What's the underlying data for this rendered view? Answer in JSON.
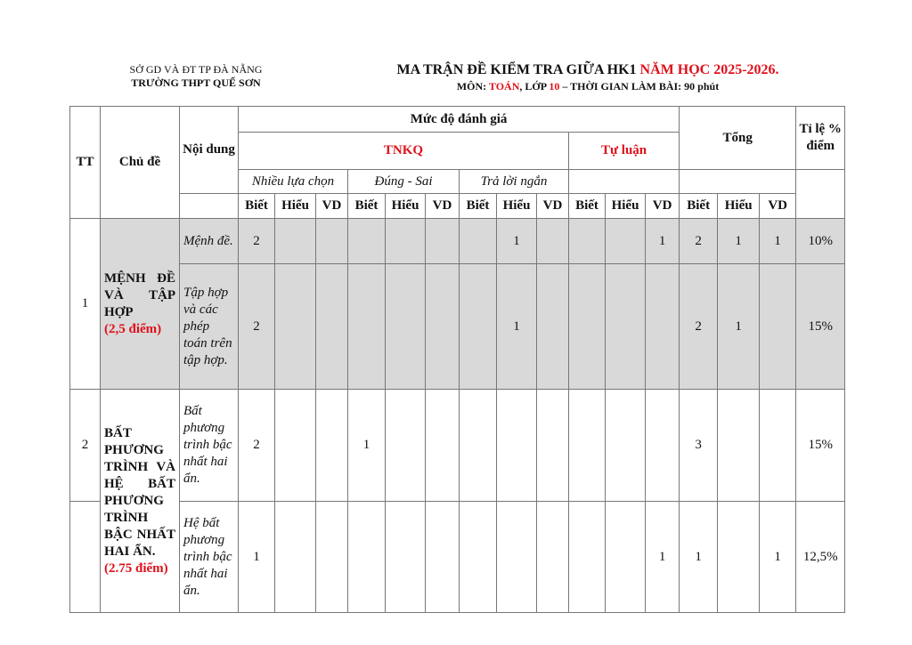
{
  "header": {
    "dept": "SỞ GD VÀ ĐT TP ĐÀ NẴNG",
    "school": "TRƯỜNG THPT QUẾ SƠN",
    "title_a": "MA TRẬN ĐỀ KIỂM TRA GIỮA HK1 ",
    "title_b": "NĂM HỌC 2025-2026.",
    "sub_a": "MÔN: ",
    "sub_b": "TOÁN",
    "sub_c": ", LỚP ",
    "sub_d": "10",
    "sub_e": " – THỜI GIAN LÀM BÀI: 90 phút"
  },
  "table": {
    "h_tt": "TT",
    "h_chude": "Chủ đề",
    "h_noidung": "Nội dung",
    "h_mucdo": "Mức độ đánh giá",
    "h_tnkq": "TNKQ",
    "h_tuluan": "Tự luận",
    "h_tong": "Tổng",
    "h_tile": "Tỉ lệ % điểm",
    "h_nlc": "Nhiều lựa chọn",
    "h_ds": "Đúng - Sai",
    "h_tln": "Trả lời ngắn",
    "levels": [
      "Biết",
      "Hiểu",
      "VD",
      "Biết",
      "Hiểu",
      "VD",
      "Biết",
      "Hiểu",
      "VD",
      "Biết",
      "Hiểu",
      "VD",
      "Biết",
      "Hiểu",
      "VD"
    ],
    "topics": [
      {
        "tt": "1",
        "name": "MỆNH ĐỀ VÀ TẬP HỢP",
        "points": "(2,5 điểm)",
        "shaded": true,
        "rows": [
          {
            "content": "Mệnh đề.",
            "cells": [
              "2",
              "",
              "",
              "",
              "",
              "",
              "",
              "1",
              "",
              "",
              "",
              "1",
              "2",
              "1",
              "1"
            ],
            "pct": "10%"
          },
          {
            "content": "Tập hợp và các phép toán trên tập hợp.",
            "cells": [
              "2",
              "",
              "",
              "",
              "",
              "",
              "",
              "1",
              "",
              "",
              "",
              "",
              "2",
              "1",
              ""
            ],
            "pct": "15%"
          }
        ]
      },
      {
        "tt": "2",
        "name": "BẤT PHƯƠNG TRÌNH VÀ HỆ BẤT PHƯƠNG TRÌNH BẬC NHẤT HAI ẨN.",
        "points": "(2.75 điểm)",
        "shaded": false,
        "rows": [
          {
            "content": "Bất phương trình bậc nhất hai ẩn.",
            "cells": [
              "2",
              "",
              "",
              "1",
              "",
              "",
              "",
              "",
              "",
              "",
              "",
              "",
              "3",
              "",
              ""
            ],
            "pct": "15%"
          },
          {
            "content": "Hệ bất phương trình bậc nhất hai ẩn.",
            "cells": [
              "1",
              "",
              "",
              "",
              "",
              "",
              "",
              "",
              "",
              "",
              "",
              "1",
              "1",
              "",
              "1"
            ],
            "pct": "12,5%"
          }
        ]
      }
    ]
  },
  "colors": {
    "accent": "#e0101b",
    "shade": "#d9d9d9"
  }
}
